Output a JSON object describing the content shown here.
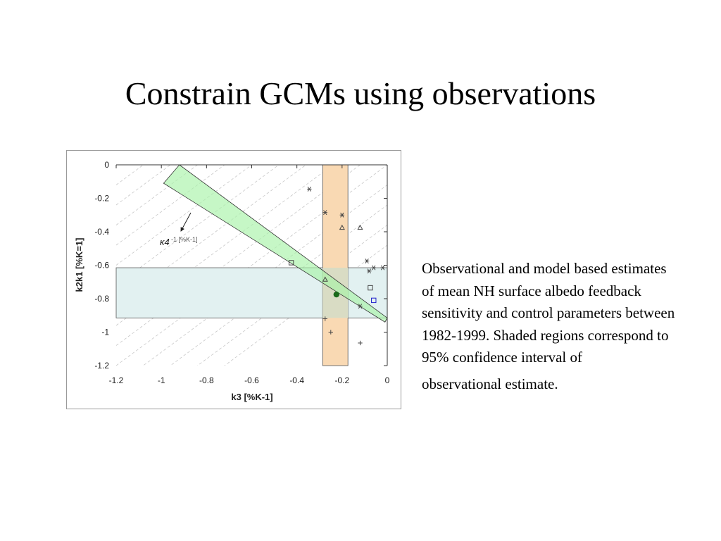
{
  "slide": {
    "title": "Constrain GCMs using observations",
    "caption_main": "Observational and model based estimates of mean NH surface albedo feedback sensitivity and control parameters between 1982-1999.  Shaded regions correspond to 95% confidence interval of",
    "caption_last": "observational estimate."
  },
  "chart_data": {
    "type": "scatter",
    "title": "",
    "xlabel": "k3 [%K-1]",
    "ylabel": "k2k1 [%K=1]",
    "xlim": [
      -1.2,
      0
    ],
    "ylim": [
      -1.2,
      0
    ],
    "xticks": [
      -1.2,
      -1,
      -0.8,
      -0.6,
      -0.4,
      -0.2,
      0
    ],
    "xtick_labels": [
      "-1.2",
      "-1",
      "-0.8",
      "-0.6",
      "-0.4",
      "-0.2",
      "0"
    ],
    "yticks": [
      0,
      -0.2,
      -0.4,
      -0.6,
      -0.8,
      -1,
      -1.2
    ],
    "ytick_labels": [
      "0",
      "-0.2",
      "-0.4",
      "-0.6",
      "-0.8",
      "-1",
      "-1.2"
    ],
    "grid": false,
    "annotation": {
      "symbol": "κ4",
      "unit": "-1 [%K-1]"
    },
    "colors": {
      "k3_band": "#f9d9b3",
      "k2k1_band": "#e2f1f1",
      "k4_band": "#a8f2a8",
      "overlap": "#d9dcc4",
      "observation": "#1a6a1a",
      "model_markers": "#444444",
      "blue_markers": "#2222cc"
    },
    "confidence_regions": {
      "k3_range": [
        -0.286,
        -0.174
      ],
      "k2k1_range": [
        -0.915,
        -0.615
      ],
      "k4_band": {
        "polygon": [
          [
            -0.92,
            0.0
          ],
          [
            0.0,
            -0.915
          ],
          [
            -0.01,
            -0.94
          ],
          [
            -0.99,
            -0.11
          ]
        ]
      }
    },
    "observation": {
      "x": -0.225,
      "y": -0.775
    },
    "series": [
      {
        "marker": "star",
        "color": "model_markers",
        "points": [
          [
            -0.345,
            -0.145
          ],
          [
            -0.275,
            -0.285
          ],
          [
            -0.2,
            -0.3
          ],
          [
            -0.09,
            -0.575
          ],
          [
            -0.08,
            -0.635
          ],
          [
            -0.06,
            -0.615
          ],
          [
            -0.02,
            -0.615
          ],
          [
            -0.12,
            -0.845
          ]
        ]
      },
      {
        "marker": "triangle",
        "color": "model_markers",
        "points": [
          [
            -0.2,
            -0.375
          ],
          [
            -0.12,
            -0.375
          ],
          [
            -0.275,
            -0.685
          ]
        ]
      },
      {
        "marker": "square",
        "color": "model_markers",
        "points": [
          [
            -0.425,
            -0.585
          ],
          [
            -0.075,
            -0.735
          ]
        ]
      },
      {
        "marker": "square",
        "color": "blue_markers",
        "points": [
          [
            -0.06,
            -0.81
          ]
        ]
      },
      {
        "marker": "plus",
        "color": "model_markers",
        "points": [
          [
            -0.275,
            -0.92
          ],
          [
            -0.25,
            -1.0
          ],
          [
            -0.12,
            -1.065
          ]
        ]
      }
    ]
  }
}
